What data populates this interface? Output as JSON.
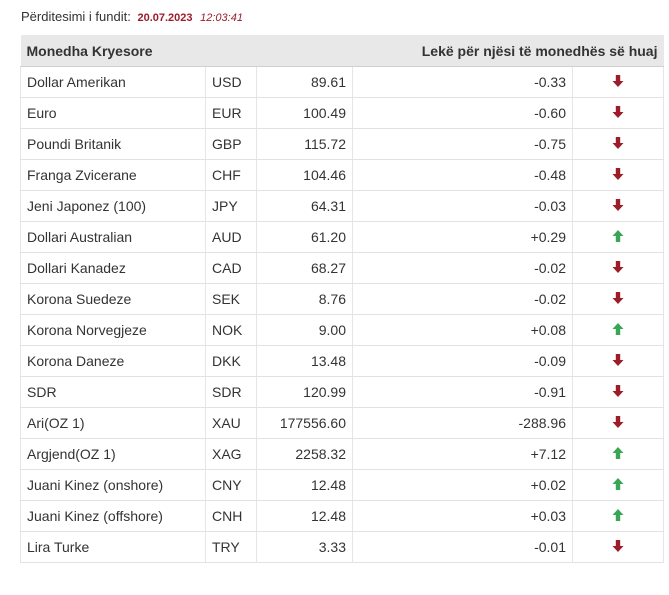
{
  "header": {
    "updated_label": "Përditesimi i fundit:",
    "date": "20.07.2023",
    "time": "12:03:41"
  },
  "table": {
    "col_main": "Monedha Kryesore",
    "col_rate": "Lekë për njësi të monedhës së huaj",
    "colors": {
      "up": "#3aa655",
      "down": "#9b1d2a"
    },
    "rows": [
      {
        "name": "Dollar Amerikan",
        "code": "USD",
        "rate": "89.61",
        "change": "-0.33",
        "direction": "down"
      },
      {
        "name": "Euro",
        "code": "EUR",
        "rate": "100.49",
        "change": "-0.60",
        "direction": "down"
      },
      {
        "name": "Poundi Britanik",
        "code": "GBP",
        "rate": "115.72",
        "change": "-0.75",
        "direction": "down"
      },
      {
        "name": "Franga Zvicerane",
        "code": "CHF",
        "rate": "104.46",
        "change": "-0.48",
        "direction": "down"
      },
      {
        "name": "Jeni Japonez (100)",
        "code": "JPY",
        "rate": "64.31",
        "change": "-0.03",
        "direction": "down"
      },
      {
        "name": "Dollari Australian",
        "code": "AUD",
        "rate": "61.20",
        "change": "+0.29",
        "direction": "up"
      },
      {
        "name": "Dollari Kanadez",
        "code": "CAD",
        "rate": "68.27",
        "change": "-0.02",
        "direction": "down"
      },
      {
        "name": "Korona Suedeze",
        "code": "SEK",
        "rate": "8.76",
        "change": "-0.02",
        "direction": "down"
      },
      {
        "name": "Korona Norvegjeze",
        "code": "NOK",
        "rate": "9.00",
        "change": "+0.08",
        "direction": "up"
      },
      {
        "name": "Korona Daneze",
        "code": "DKK",
        "rate": "13.48",
        "change": "-0.09",
        "direction": "down"
      },
      {
        "name": "SDR",
        "code": "SDR",
        "rate": "120.99",
        "change": "-0.91",
        "direction": "down"
      },
      {
        "name": "Ari(OZ 1)",
        "code": "XAU",
        "rate": "177556.60",
        "change": "-288.96",
        "direction": "down"
      },
      {
        "name": "Argjend(OZ 1)",
        "code": "XAG",
        "rate": "2258.32",
        "change": "+7.12",
        "direction": "up"
      },
      {
        "name": "Juani Kinez (onshore)",
        "code": "CNY",
        "rate": "12.48",
        "change": "+0.02",
        "direction": "up"
      },
      {
        "name": "Juani Kinez (offshore)",
        "code": "CNH",
        "rate": "12.48",
        "change": "+0.03",
        "direction": "up"
      },
      {
        "name": "Lira Turke",
        "code": "TRY",
        "rate": "3.33",
        "change": "-0.01",
        "direction": "down"
      }
    ]
  }
}
